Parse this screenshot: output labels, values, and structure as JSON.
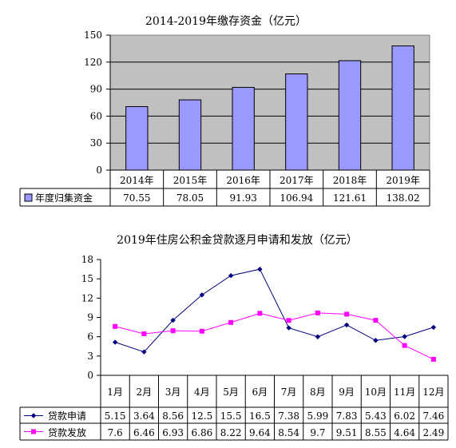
{
  "chart_data": [
    {
      "type": "bar",
      "title": "2014-2019年缴存资金（亿元）",
      "categories": [
        "2014年",
        "2015年",
        "2016年",
        "2017年",
        "2018年",
        "2019年"
      ],
      "series": [
        {
          "name": "年度归集资金",
          "values": [
            70.55,
            78.05,
            91.93,
            106.94,
            121.61,
            138.02
          ],
          "value_labels": [
            "70.55",
            "78.05",
            "91.93",
            "106.94",
            "121.61",
            "138.02"
          ],
          "color": "#9999ff"
        }
      ],
      "ylim": [
        0,
        150
      ],
      "yticks": [
        "0",
        "30",
        "60",
        "90",
        "120",
        "150"
      ],
      "plot_background": "#c0c0c0",
      "grid": true,
      "legend": "data-table"
    },
    {
      "type": "line",
      "title": "2019年住房公积金贷款逐月申请和发放（亿元）",
      "categories": [
        "1月",
        "2月",
        "3月",
        "4月",
        "5月",
        "6月",
        "7月",
        "8月",
        "9月",
        "10月",
        "11月",
        "12月"
      ],
      "series": [
        {
          "name": "贷款申请",
          "values": [
            5.15,
            3.64,
            8.56,
            12.5,
            15.5,
            16.5,
            7.38,
            5.99,
            7.83,
            5.43,
            6.02,
            7.46
          ],
          "value_labels": [
            "5.15",
            "3.64",
            "8.56",
            "12.5",
            "15.5",
            "16.5",
            "7.38",
            "5.99",
            "7.83",
            "5.43",
            "6.02",
            "7.46"
          ],
          "color": "#000080",
          "marker": "diamond"
        },
        {
          "name": "贷款发放",
          "values": [
            7.6,
            6.46,
            6.93,
            6.86,
            8.22,
            9.64,
            8.54,
            9.7,
            9.51,
            8.55,
            4.64,
            2.49
          ],
          "value_labels": [
            "7.6",
            "6.46",
            "6.93",
            "6.86",
            "8.22",
            "9.64",
            "8.54",
            "9.7",
            "9.51",
            "8.55",
            "4.64",
            "2.49"
          ],
          "color": "#ff00ff",
          "marker": "square"
        }
      ],
      "ylim": [
        0,
        18
      ],
      "yticks": [
        "0",
        "3",
        "6",
        "9",
        "12",
        "15",
        "18"
      ],
      "plot_background": "#ffffff",
      "grid": false,
      "legend": "data-table"
    }
  ]
}
